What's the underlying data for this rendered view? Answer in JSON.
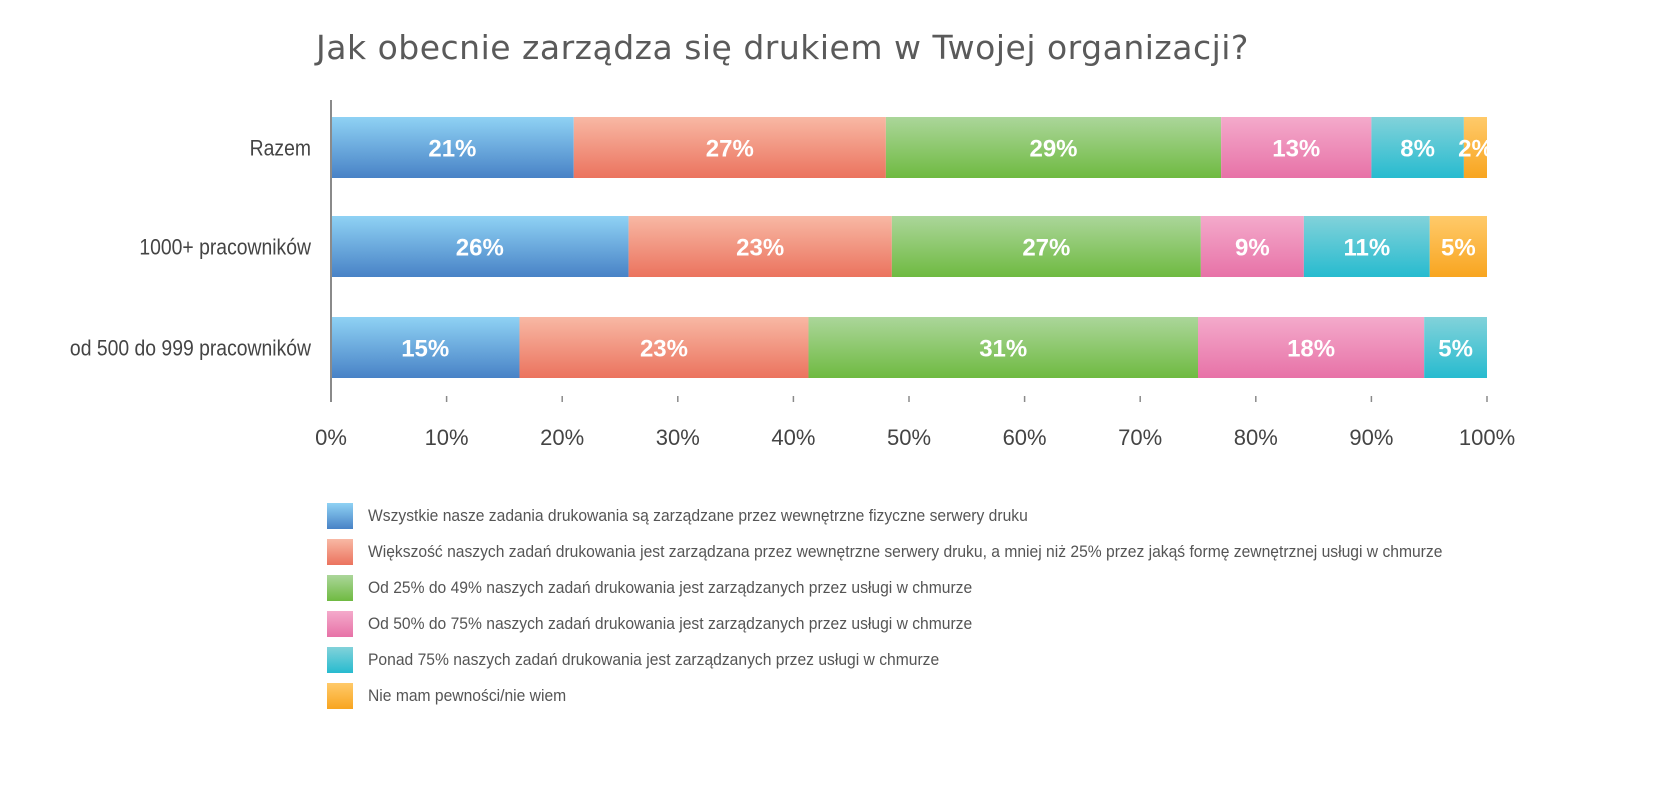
{
  "chart_data": {
    "type": "bar",
    "orientation": "horizontal",
    "stacked": true,
    "title": "Jak obecnie zarządza się drukiem w Twojej organizacji?",
    "categories": [
      "Razem",
      "1000+ pracowników",
      "od 500 do 999 pracowników"
    ],
    "xlim": [
      0,
      100
    ],
    "xticks": [
      "0%",
      "10%",
      "20%",
      "30%",
      "40%",
      "50%",
      "60%",
      "70%",
      "80%",
      "90%",
      "100%"
    ],
    "grid": false,
    "legend_position": "bottom",
    "series": [
      {
        "name": "Wszystkie nasze zadania drukowania są zarządzane przez wewnętrzne fizyczne serwery druku",
        "values": [
          21,
          26,
          15
        ],
        "color": "#5b95d2"
      },
      {
        "name": "Większość naszych zadań drukowania jest zarządzana przez wewnętrzne serwery druku, a mniej niż 25% przez jakąś formę zewnętrznej usługi w chmurze",
        "values": [
          27,
          23,
          23
        ],
        "color": "#ef8772"
      },
      {
        "name": "Od 25% do 49% naszych zadań drukowania jest zarządzanych przez usługi w chmurze",
        "values": [
          29,
          27,
          31
        ],
        "color": "#7fc156"
      },
      {
        "name": "Od 50% do 75% naszych zadań drukowania jest zarządzanych przez usługi w chmurze",
        "values": [
          13,
          9,
          18
        ],
        "color": "#ec84b3"
      },
      {
        "name": "Ponad 75% naszych zadań drukowania jest zarządzanych przez usługi w chmurze",
        "values": [
          8,
          11,
          5
        ],
        "color": "#3fc2d2"
      },
      {
        "name": "Nie mam pewności/nie wiem",
        "values": [
          2,
          5,
          null
        ],
        "color": "#fbb33a"
      }
    ]
  }
}
